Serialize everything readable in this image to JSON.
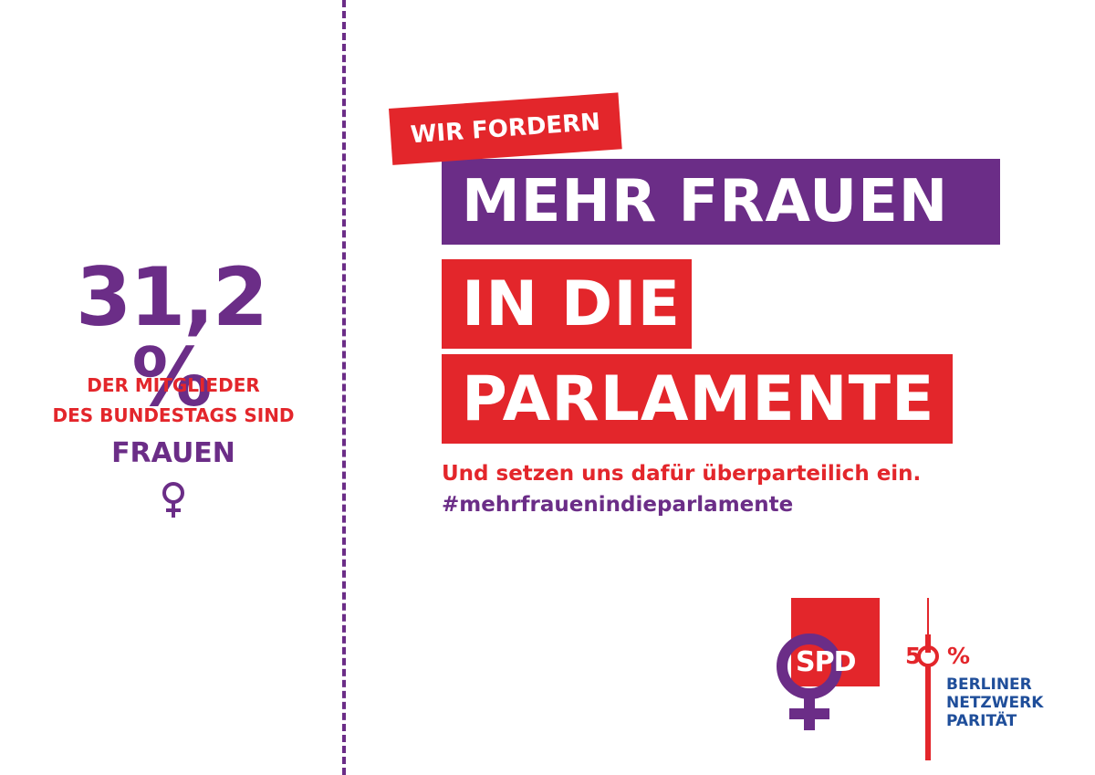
{
  "colors": {
    "purple": "#6b2d87",
    "red": "#e3262b",
    "blue": "#1f4e9a"
  },
  "stat": {
    "value": "31,2 %",
    "desc_line1": "DER MITGLIEDER",
    "desc_line2": "DES BUNDESTAGS SIND",
    "word": "FRAUEN"
  },
  "headline": {
    "tag": "WIR FORDERN",
    "line1": "MEHR FRAUEN",
    "line2": "IN DIE",
    "line3": "PARLAMENTE"
  },
  "subline": "Und setzen uns dafür überparteilich ein.",
  "hashtag": "#mehrfrauenindieparlamente",
  "logos": {
    "spd": "SPD",
    "network_percent_5": "5",
    "network_percent_0": "0",
    "network_percent_sign": "%",
    "network_line1": "BERLINER",
    "network_line2": "NETZWERK",
    "network_line3": "PARITÄT"
  }
}
